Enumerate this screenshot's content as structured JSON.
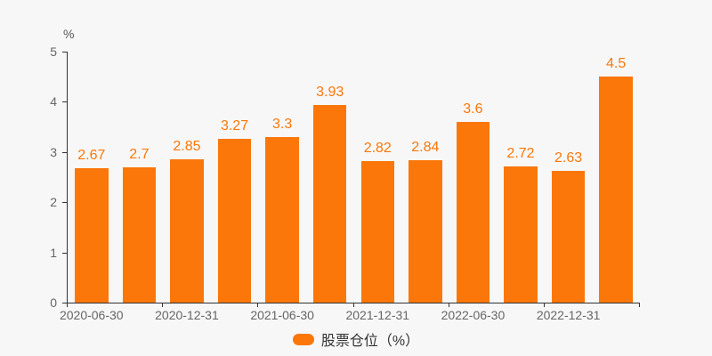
{
  "chart": {
    "unit_label": "%",
    "background_color": "#f7f7f7",
    "axis_color": "#333333",
    "tick_label_color": "#666666",
    "bar_color": "#fb7709",
    "legend": {
      "label": "股票仓位（%）",
      "marker_color": "#fb7709",
      "text_color": "#333333"
    }
  },
  "chart_data": {
    "type": "bar",
    "title": "",
    "ylabel": "%",
    "xlabel": "",
    "series": [
      {
        "name": "股票仓位（%）",
        "color": "#fb7709",
        "values": [
          2.67,
          2.7,
          2.85,
          3.27,
          3.3,
          3.93,
          2.82,
          2.84,
          3.6,
          2.72,
          2.63,
          4.5
        ]
      }
    ],
    "value_labels": [
      "2.67",
      "2.7",
      "2.85",
      "3.27",
      "3.3",
      "3.93",
      "2.82",
      "2.84",
      "3.6",
      "2.72",
      "2.63",
      "4.5"
    ],
    "x_tick_labels": [
      "2020-06-30",
      "2020-12-31",
      "2021-06-30",
      "2021-12-31",
      "2022-06-30",
      "2022-12-31"
    ],
    "x_label_every_n_bars": 2,
    "y_ticks": [
      0,
      1,
      2,
      3,
      4,
      5
    ],
    "ylim": [
      0,
      5
    ],
    "grid": false,
    "legend_position": "bottom",
    "value_labels_shown": true
  }
}
